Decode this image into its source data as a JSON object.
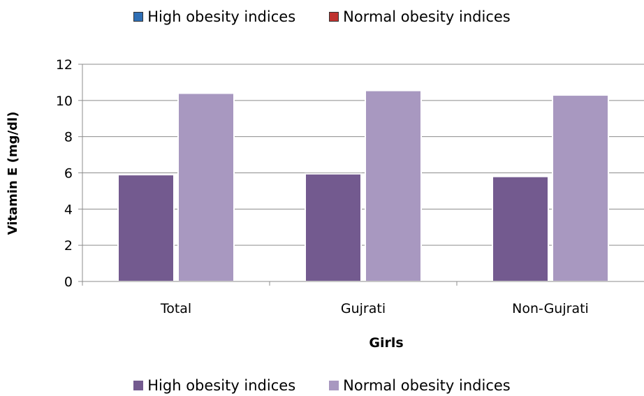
{
  "legend_top": [
    {
      "label": "High obesity indices",
      "color": "#2f6fb5"
    },
    {
      "label": "Normal obesity indices",
      "color": "#c0322f"
    }
  ],
  "chart_data": {
    "type": "bar",
    "categories": [
      "Total",
      "Gujrati",
      "Non-Gujrati"
    ],
    "series": [
      {
        "name": "High obesity indices",
        "values": [
          5.9,
          5.95,
          5.8
        ],
        "color": "#735a8f"
      },
      {
        "name": "Normal obesity indices",
        "values": [
          10.4,
          10.55,
          10.3
        ],
        "color": "#a898c0"
      }
    ],
    "xlabel": "Girls",
    "ylabel": "Vitamin E (mg/dl)",
    "ylim": [
      0,
      12
    ],
    "yticks": [
      0,
      2,
      4,
      6,
      8,
      10,
      12
    ],
    "grid": true,
    "legend": "bottom"
  }
}
